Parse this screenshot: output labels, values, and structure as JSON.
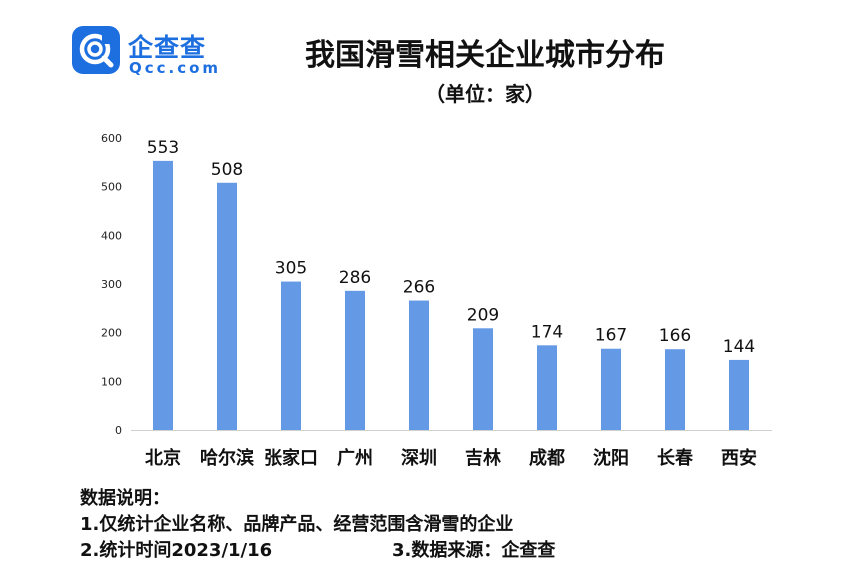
{
  "brand": {
    "name_cn": "企查查",
    "name_en": "Qcc.com",
    "icon": "qcc-logo-icon",
    "color": "#1d6fe0"
  },
  "chart_data": {
    "type": "bar",
    "title": "我国滑雪相关企业城市分布",
    "subtitle": "（单位：家）",
    "categories": [
      "北京",
      "哈尔滨",
      "张家口",
      "广州",
      "深圳",
      "吉林",
      "成都",
      "沈阳",
      "长春",
      "西安"
    ],
    "values": [
      553,
      508,
      305,
      286,
      266,
      209,
      174,
      167,
      166,
      144
    ],
    "ylim": [
      0,
      600
    ],
    "yticks": [
      0,
      100,
      200,
      300,
      400,
      500,
      600
    ],
    "grid": false,
    "bar_color": "#6499e6"
  },
  "notes": {
    "heading": "数据说明：",
    "line1": "1.仅统计企业名称、品牌产品、经营范围含滑雪的企业",
    "line2a": "2.统计时间2023/1/16",
    "line2b": "3.数据来源：企查查"
  }
}
